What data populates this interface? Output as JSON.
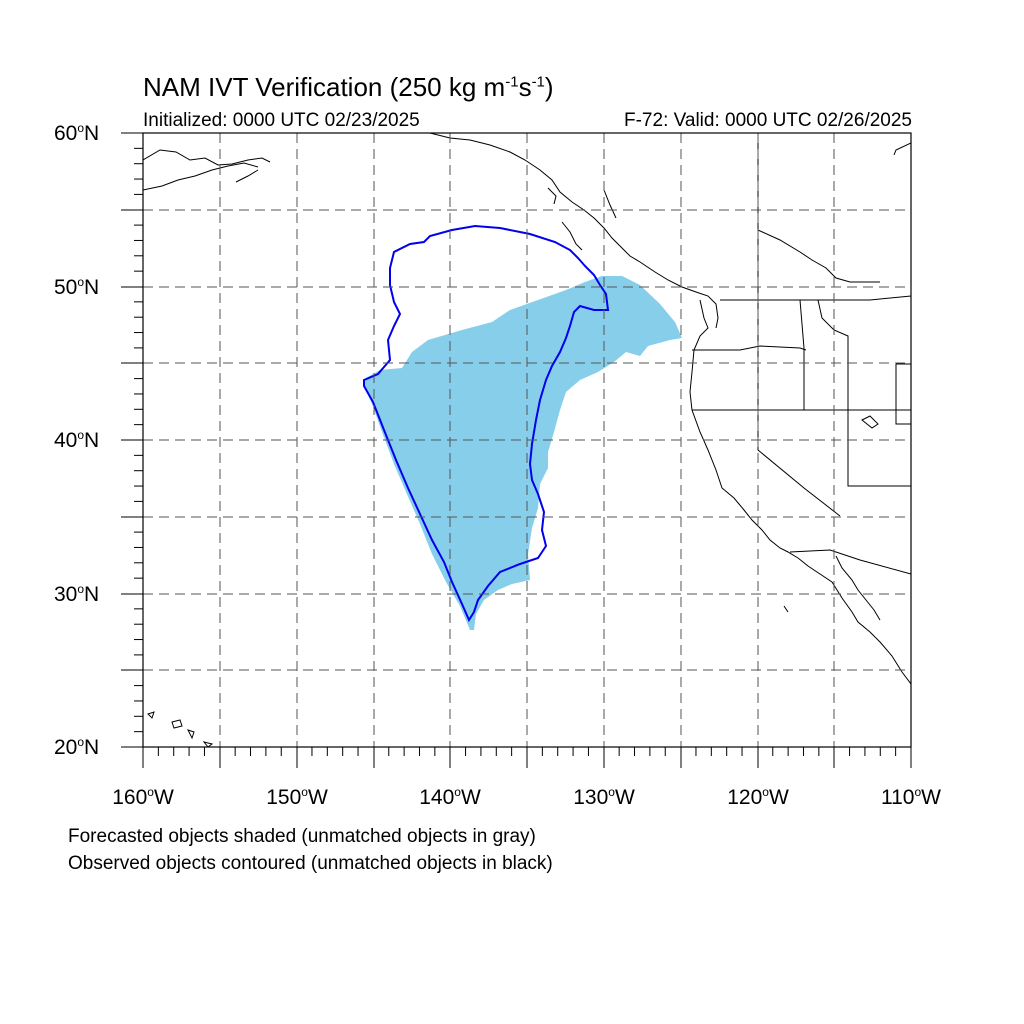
{
  "title": {
    "prefix": "NAM IVT Verification (250 kg m",
    "exp1": "-1",
    "middle": "s",
    "exp2": "-1",
    "suffix": ")"
  },
  "subtitle": {
    "initialized": "Initialized: 0000 UTC 02/23/2025",
    "valid": "F-72: Valid: 0000 UTC 02/26/2025"
  },
  "map": {
    "lon_range": [
      -160,
      -110
    ],
    "lat_range": [
      20,
      60
    ],
    "grid": true,
    "lat_labels": [
      {
        "num": "60",
        "deg": "o",
        "hem": "N",
        "lat": 60
      },
      {
        "num": "50",
        "deg": "o",
        "hem": "N",
        "lat": 50
      },
      {
        "num": "40",
        "deg": "o",
        "hem": "N",
        "lat": 40
      },
      {
        "num": "30",
        "deg": "o",
        "hem": "N",
        "lat": 30
      },
      {
        "num": "20",
        "deg": "o",
        "hem": "N",
        "lat": 20
      }
    ],
    "lon_labels": [
      {
        "num": "160",
        "deg": "o",
        "hem": "W",
        "lon": -160
      },
      {
        "num": "150",
        "deg": "o",
        "hem": "W",
        "lon": -150
      },
      {
        "num": "140",
        "deg": "o",
        "hem": "W",
        "lon": -140
      },
      {
        "num": "130",
        "deg": "o",
        "hem": "W",
        "lon": -130
      },
      {
        "num": "120",
        "deg": "o",
        "hem": "W",
        "lon": -120
      },
      {
        "num": "110",
        "deg": "o",
        "hem": "W",
        "lon": -110
      }
    ],
    "colors": {
      "forecast_fill": "#87ceeb",
      "observed_contour": "#0000ee",
      "grid": "#555555",
      "coast": "#000000"
    }
  },
  "notes": {
    "line1": "Forecasted objects shaded (unmatched objects in gray)",
    "line2": "Observed objects contoured (unmatched objects in black)"
  }
}
